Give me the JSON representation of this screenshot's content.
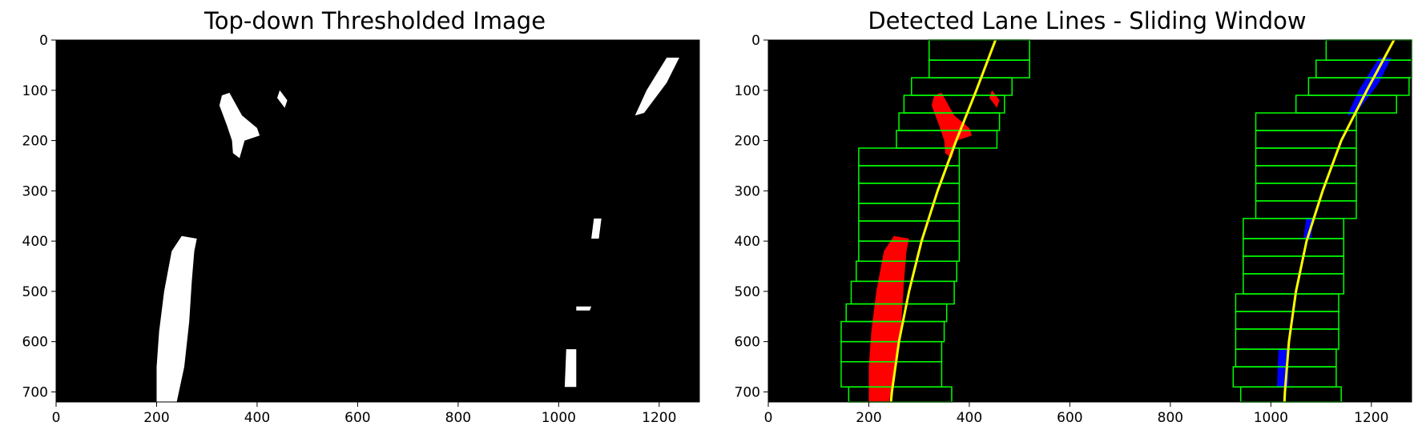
{
  "chart_data": [
    {
      "type": "image",
      "title": "Top-down Thresholded Image",
      "xlim": [
        0,
        1280
      ],
      "ylim": [
        720,
        0
      ],
      "xticks": [
        0,
        200,
        400,
        600,
        800,
        1000,
        1200
      ],
      "yticks": [
        0,
        100,
        200,
        300,
        400,
        500,
        600,
        700
      ],
      "background": "#000000",
      "blob_color": "#ffffff",
      "blobs": [
        {
          "name": "left-lane-bottom",
          "points": [
            [
              215,
              720
            ],
            [
              240,
              720
            ],
            [
              255,
              650
            ],
            [
              265,
              560
            ],
            [
              270,
              480
            ],
            [
              275,
              420
            ],
            [
              280,
              395
            ],
            [
              250,
              390
            ],
            [
              230,
              420
            ],
            [
              215,
              500
            ],
            [
              205,
              580
            ],
            [
              200,
              650
            ],
            [
              200,
              720
            ]
          ]
        },
        {
          "name": "left-lane-top",
          "points": [
            [
              330,
              110
            ],
            [
              345,
              105
            ],
            [
              370,
              150
            ],
            [
              400,
              175
            ],
            [
              405,
              190
            ],
            [
              375,
              200
            ],
            [
              365,
              235
            ],
            [
              352,
              225
            ],
            [
              350,
              200
            ],
            [
              340,
              170
            ],
            [
              325,
              130
            ]
          ]
        },
        {
          "name": "left-lane-top-2",
          "points": [
            [
              445,
              100
            ],
            [
              460,
              120
            ],
            [
              455,
              135
            ],
            [
              440,
              115
            ]
          ]
        },
        {
          "name": "right-lane-bottom",
          "points": [
            [
              1015,
              615
            ],
            [
              1035,
              615
            ],
            [
              1035,
              690
            ],
            [
              1012,
              690
            ]
          ]
        },
        {
          "name": "right-lane-mid",
          "points": [
            [
              1070,
              355
            ],
            [
              1085,
              355
            ],
            [
              1080,
              395
            ],
            [
              1065,
              395
            ]
          ]
        },
        {
          "name": "right-lane-mid-2",
          "points": [
            [
              1035,
              530
            ],
            [
              1065,
              530
            ],
            [
              1062,
              538
            ],
            [
              1035,
              538
            ]
          ]
        },
        {
          "name": "right-lane-top",
          "points": [
            [
              1215,
              35
            ],
            [
              1240,
              35
            ],
            [
              1215,
              85
            ],
            [
              1170,
              145
            ],
            [
              1152,
              150
            ],
            [
              1175,
              100
            ]
          ]
        }
      ]
    },
    {
      "type": "image",
      "title": "Detected Lane Lines - Sliding Window",
      "xlim": [
        0,
        1280
      ],
      "ylim": [
        720,
        0
      ],
      "xticks": [
        0,
        200,
        400,
        600,
        800,
        1000,
        1200
      ],
      "yticks": [
        0,
        100,
        200,
        300,
        400,
        500,
        600,
        700
      ],
      "background": "#000000",
      "window_color": "#00ff00",
      "left_pixels_color": "#ff0000",
      "right_pixels_color": "#0000ff",
      "fit_color": "#ffff00",
      "left_windows": [
        {
          "x": [
            160,
            365
          ],
          "y": [
            690,
            720
          ]
        },
        {
          "x": [
            145,
            345
          ],
          "y": [
            640,
            690
          ]
        },
        {
          "x": [
            145,
            345
          ],
          "y": [
            600,
            640
          ]
        },
        {
          "x": [
            145,
            350
          ],
          "y": [
            560,
            600
          ]
        },
        {
          "x": [
            155,
            355
          ],
          "y": [
            525,
            560
          ]
        },
        {
          "x": [
            165,
            370
          ],
          "y": [
            480,
            525
          ]
        },
        {
          "x": [
            175,
            375
          ],
          "y": [
            440,
            480
          ]
        },
        {
          "x": [
            180,
            380
          ],
          "y": [
            400,
            440
          ]
        },
        {
          "x": [
            180,
            380
          ],
          "y": [
            360,
            400
          ]
        },
        {
          "x": [
            180,
            380
          ],
          "y": [
            325,
            360
          ]
        },
        {
          "x": [
            180,
            380
          ],
          "y": [
            285,
            325
          ]
        },
        {
          "x": [
            180,
            380
          ],
          "y": [
            250,
            285
          ]
        },
        {
          "x": [
            180,
            380
          ],
          "y": [
            215,
            250
          ]
        },
        {
          "x": [
            255,
            455
          ],
          "y": [
            180,
            215
          ]
        },
        {
          "x": [
            260,
            460
          ],
          "y": [
            145,
            180
          ]
        },
        {
          "x": [
            270,
            470
          ],
          "y": [
            110,
            145
          ]
        },
        {
          "x": [
            285,
            485
          ],
          "y": [
            75,
            110
          ]
        },
        {
          "x": [
            320,
            520
          ],
          "y": [
            40,
            75
          ]
        },
        {
          "x": [
            320,
            520
          ],
          "y": [
            0,
            40
          ]
        }
      ],
      "right_windows": [
        {
          "x": [
            940,
            1140
          ],
          "y": [
            690,
            720
          ]
        },
        {
          "x": [
            925,
            1130
          ],
          "y": [
            650,
            690
          ]
        },
        {
          "x": [
            930,
            1130
          ],
          "y": [
            615,
            650
          ]
        },
        {
          "x": [
            930,
            1135
          ],
          "y": [
            575,
            615
          ]
        },
        {
          "x": [
            930,
            1135
          ],
          "y": [
            540,
            575
          ]
        },
        {
          "x": [
            930,
            1135
          ],
          "y": [
            505,
            540
          ]
        },
        {
          "x": [
            945,
            1145
          ],
          "y": [
            465,
            505
          ]
        },
        {
          "x": [
            945,
            1145
          ],
          "y": [
            430,
            465
          ]
        },
        {
          "x": [
            945,
            1145
          ],
          "y": [
            395,
            430
          ]
        },
        {
          "x": [
            945,
            1145
          ],
          "y": [
            355,
            395
          ]
        },
        {
          "x": [
            970,
            1170
          ],
          "y": [
            320,
            355
          ]
        },
        {
          "x": [
            970,
            1170
          ],
          "y": [
            285,
            320
          ]
        },
        {
          "x": [
            970,
            1170
          ],
          "y": [
            250,
            285
          ]
        },
        {
          "x": [
            970,
            1170
          ],
          "y": [
            215,
            250
          ]
        },
        {
          "x": [
            970,
            1170
          ],
          "y": [
            180,
            215
          ]
        },
        {
          "x": [
            970,
            1170
          ],
          "y": [
            145,
            180
          ]
        },
        {
          "x": [
            1050,
            1250
          ],
          "y": [
            110,
            145
          ]
        },
        {
          "x": [
            1075,
            1275
          ],
          "y": [
            75,
            110
          ]
        },
        {
          "x": [
            1090,
            1290
          ],
          "y": [
            40,
            75
          ]
        },
        {
          "x": [
            1110,
            1310
          ],
          "y": [
            0,
            40
          ]
        }
      ],
      "left_pixels": [
        {
          "points": [
            [
              215,
              720
            ],
            [
              240,
              720
            ],
            [
              255,
              650
            ],
            [
              265,
              560
            ],
            [
              270,
              480
            ],
            [
              275,
              420
            ],
            [
              280,
              395
            ],
            [
              250,
              390
            ],
            [
              230,
              420
            ],
            [
              215,
              500
            ],
            [
              205,
              580
            ],
            [
              200,
              650
            ],
            [
              200,
              720
            ]
          ]
        },
        {
          "points": [
            [
              330,
              110
            ],
            [
              345,
              105
            ],
            [
              370,
              150
            ],
            [
              400,
              175
            ],
            [
              405,
              190
            ],
            [
              375,
              200
            ],
            [
              365,
              235
            ],
            [
              352,
              225
            ],
            [
              350,
              200
            ],
            [
              340,
              170
            ],
            [
              325,
              130
            ]
          ]
        },
        {
          "points": [
            [
              445,
              100
            ],
            [
              460,
              120
            ],
            [
              455,
              135
            ],
            [
              440,
              115
            ]
          ]
        }
      ],
      "right_pixels": [
        {
          "points": [
            [
              1015,
              615
            ],
            [
              1035,
              615
            ],
            [
              1035,
              690
            ],
            [
              1012,
              690
            ]
          ]
        },
        {
          "points": [
            [
              1070,
              355
            ],
            [
              1085,
              355
            ],
            [
              1080,
              395
            ],
            [
              1065,
              395
            ]
          ]
        },
        {
          "points": [
            [
              1215,
              35
            ],
            [
              1240,
              35
            ],
            [
              1215,
              85
            ],
            [
              1170,
              145
            ],
            [
              1152,
              150
            ],
            [
              1175,
              100
            ]
          ]
        }
      ],
      "left_fit": {
        "y": [
          0,
          100,
          200,
          300,
          400,
          500,
          600,
          700,
          720
        ],
        "x": [
          452,
          414,
          374,
          337,
          305,
          280,
          260,
          246,
          244
        ]
      },
      "right_fit": {
        "y": [
          0,
          100,
          200,
          300,
          400,
          500,
          600,
          700,
          720
        ],
        "x": [
          1245,
          1191,
          1140,
          1103,
          1071,
          1050,
          1036,
          1028,
          1027
        ]
      }
    }
  ]
}
